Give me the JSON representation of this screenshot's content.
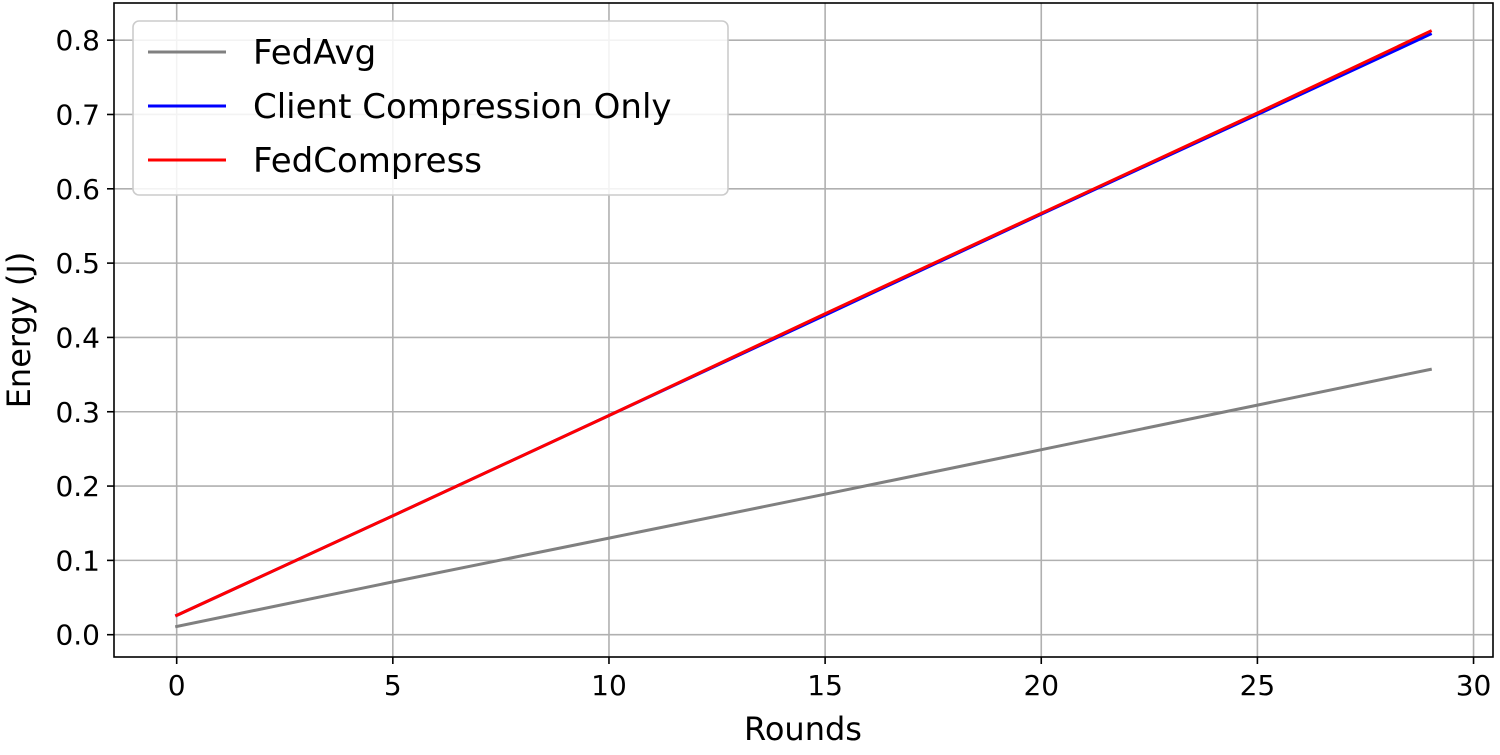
{
  "chart_data": {
    "type": "line",
    "title": "",
    "xlabel": "Rounds",
    "ylabel": "Energy (J)",
    "xlim": [
      -1.45,
      30.45
    ],
    "ylim": [
      -0.03,
      0.85
    ],
    "xticks": [
      0,
      5,
      10,
      15,
      20,
      25,
      30
    ],
    "xtick_labels": [
      "0",
      "5",
      "10",
      "15",
      "20",
      "25",
      "30"
    ],
    "yticks": [
      0.0,
      0.1,
      0.2,
      0.3,
      0.4,
      0.5,
      0.6,
      0.7,
      0.8
    ],
    "ytick_labels": [
      "0.0",
      "0.1",
      "0.2",
      "0.3",
      "0.4",
      "0.5",
      "0.6",
      "0.7",
      "0.8"
    ],
    "grid": true,
    "legend_position": "top-left",
    "x": [
      0,
      5,
      10,
      15,
      20,
      25,
      29
    ],
    "series": [
      {
        "name": "FedAvg",
        "color": "#808080",
        "values": [
          0.011,
          0.071,
          0.13,
          0.189,
          0.249,
          0.309,
          0.357
        ]
      },
      {
        "name": "Client Compression Only",
        "color": "#0000ff",
        "values": [
          0.026,
          0.16,
          0.295,
          0.43,
          0.566,
          0.7,
          0.808
        ]
      },
      {
        "name": "FedCompress",
        "color": "#ff0000",
        "values": [
          0.026,
          0.16,
          0.295,
          0.432,
          0.567,
          0.702,
          0.812
        ]
      }
    ]
  }
}
